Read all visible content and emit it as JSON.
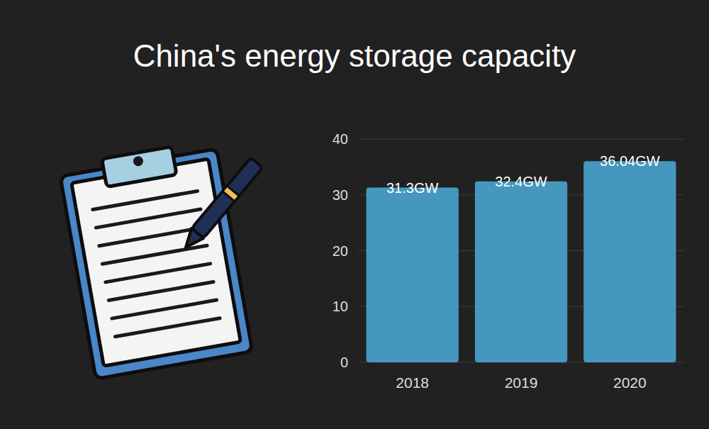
{
  "chart_data": {
    "type": "bar",
    "title": "China's energy storage capacity",
    "categories": [
      "2018",
      "2019",
      "2020"
    ],
    "values": [
      31.3,
      32.4,
      36.04
    ],
    "value_labels": [
      "31.3GW",
      "32.4GW",
      "36.04GW"
    ],
    "color": "#4597bd",
    "ylim": [
      0,
      40
    ],
    "yticks": [
      0,
      10,
      20,
      30,
      40
    ],
    "grid": true,
    "data_labels": true
  }
}
